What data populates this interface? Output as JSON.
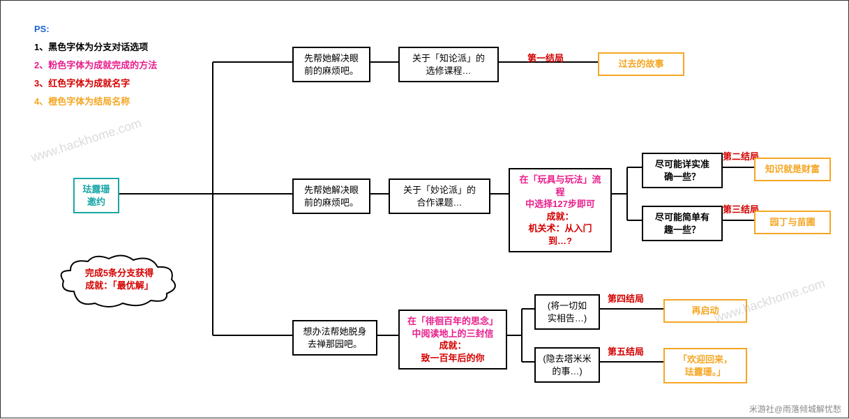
{
  "legend": {
    "title": "PS:",
    "title_color": "#1e63d6",
    "items": [
      {
        "t": "1、黑色字体为分支对话选项",
        "c": "#000"
      },
      {
        "t": "2、粉色字体为成就完成的方法",
        "c": "#e91e8c"
      },
      {
        "t": "3、红色字体为成就名字",
        "c": "#d40000"
      },
      {
        "t": "4、橙色字体为结局名称",
        "c": "#f5a623"
      }
    ]
  },
  "start": {
    "l1": "珐露珊",
    "l2": "邀约"
  },
  "cloud": {
    "l1": "完成5条分支获得",
    "l2": "成就：「最优解」"
  },
  "r1": {
    "a": "先帮她解决眼\n前的麻烦吧。",
    "b": "关于「知论派」的\n选修课程…",
    "end": "第一结局",
    "out": "过去的故事"
  },
  "r2": {
    "a": "先帮她解决眼\n前的麻烦吧。",
    "b": "关于「妙论派」的\n合作课题…",
    "ach_m": "在「玩具与玩法」流程\n中选择127步即可",
    "ach_a": "成就：\n机关术：从入门到…?",
    "c1": "尽可能详实准\n确一些？",
    "e1": "第二结局",
    "o1": "知识就是财富",
    "c2": "尽可能简单有\n趣一些？",
    "e2": "第三结局",
    "o2": "园丁与苗圃"
  },
  "r3": {
    "a": "想办法帮她脱身\n去禅那园吧。",
    "ach_m": "在「徘徊百年的思念」\n中阅读地上的三封信",
    "ach_a": "成就：\n致一百年后的你",
    "c1": "(将一切如\n实相告…)",
    "e1": "第四结局",
    "o1": "再启动",
    "c2": "(隐去塔米米\n的事…)",
    "e2": "第五结局",
    "o2": "「欢迎回来，\n珐露珊。」"
  },
  "watermark": "www.hackhome.com",
  "credit": "米游社@雨落倾城解忧愁"
}
